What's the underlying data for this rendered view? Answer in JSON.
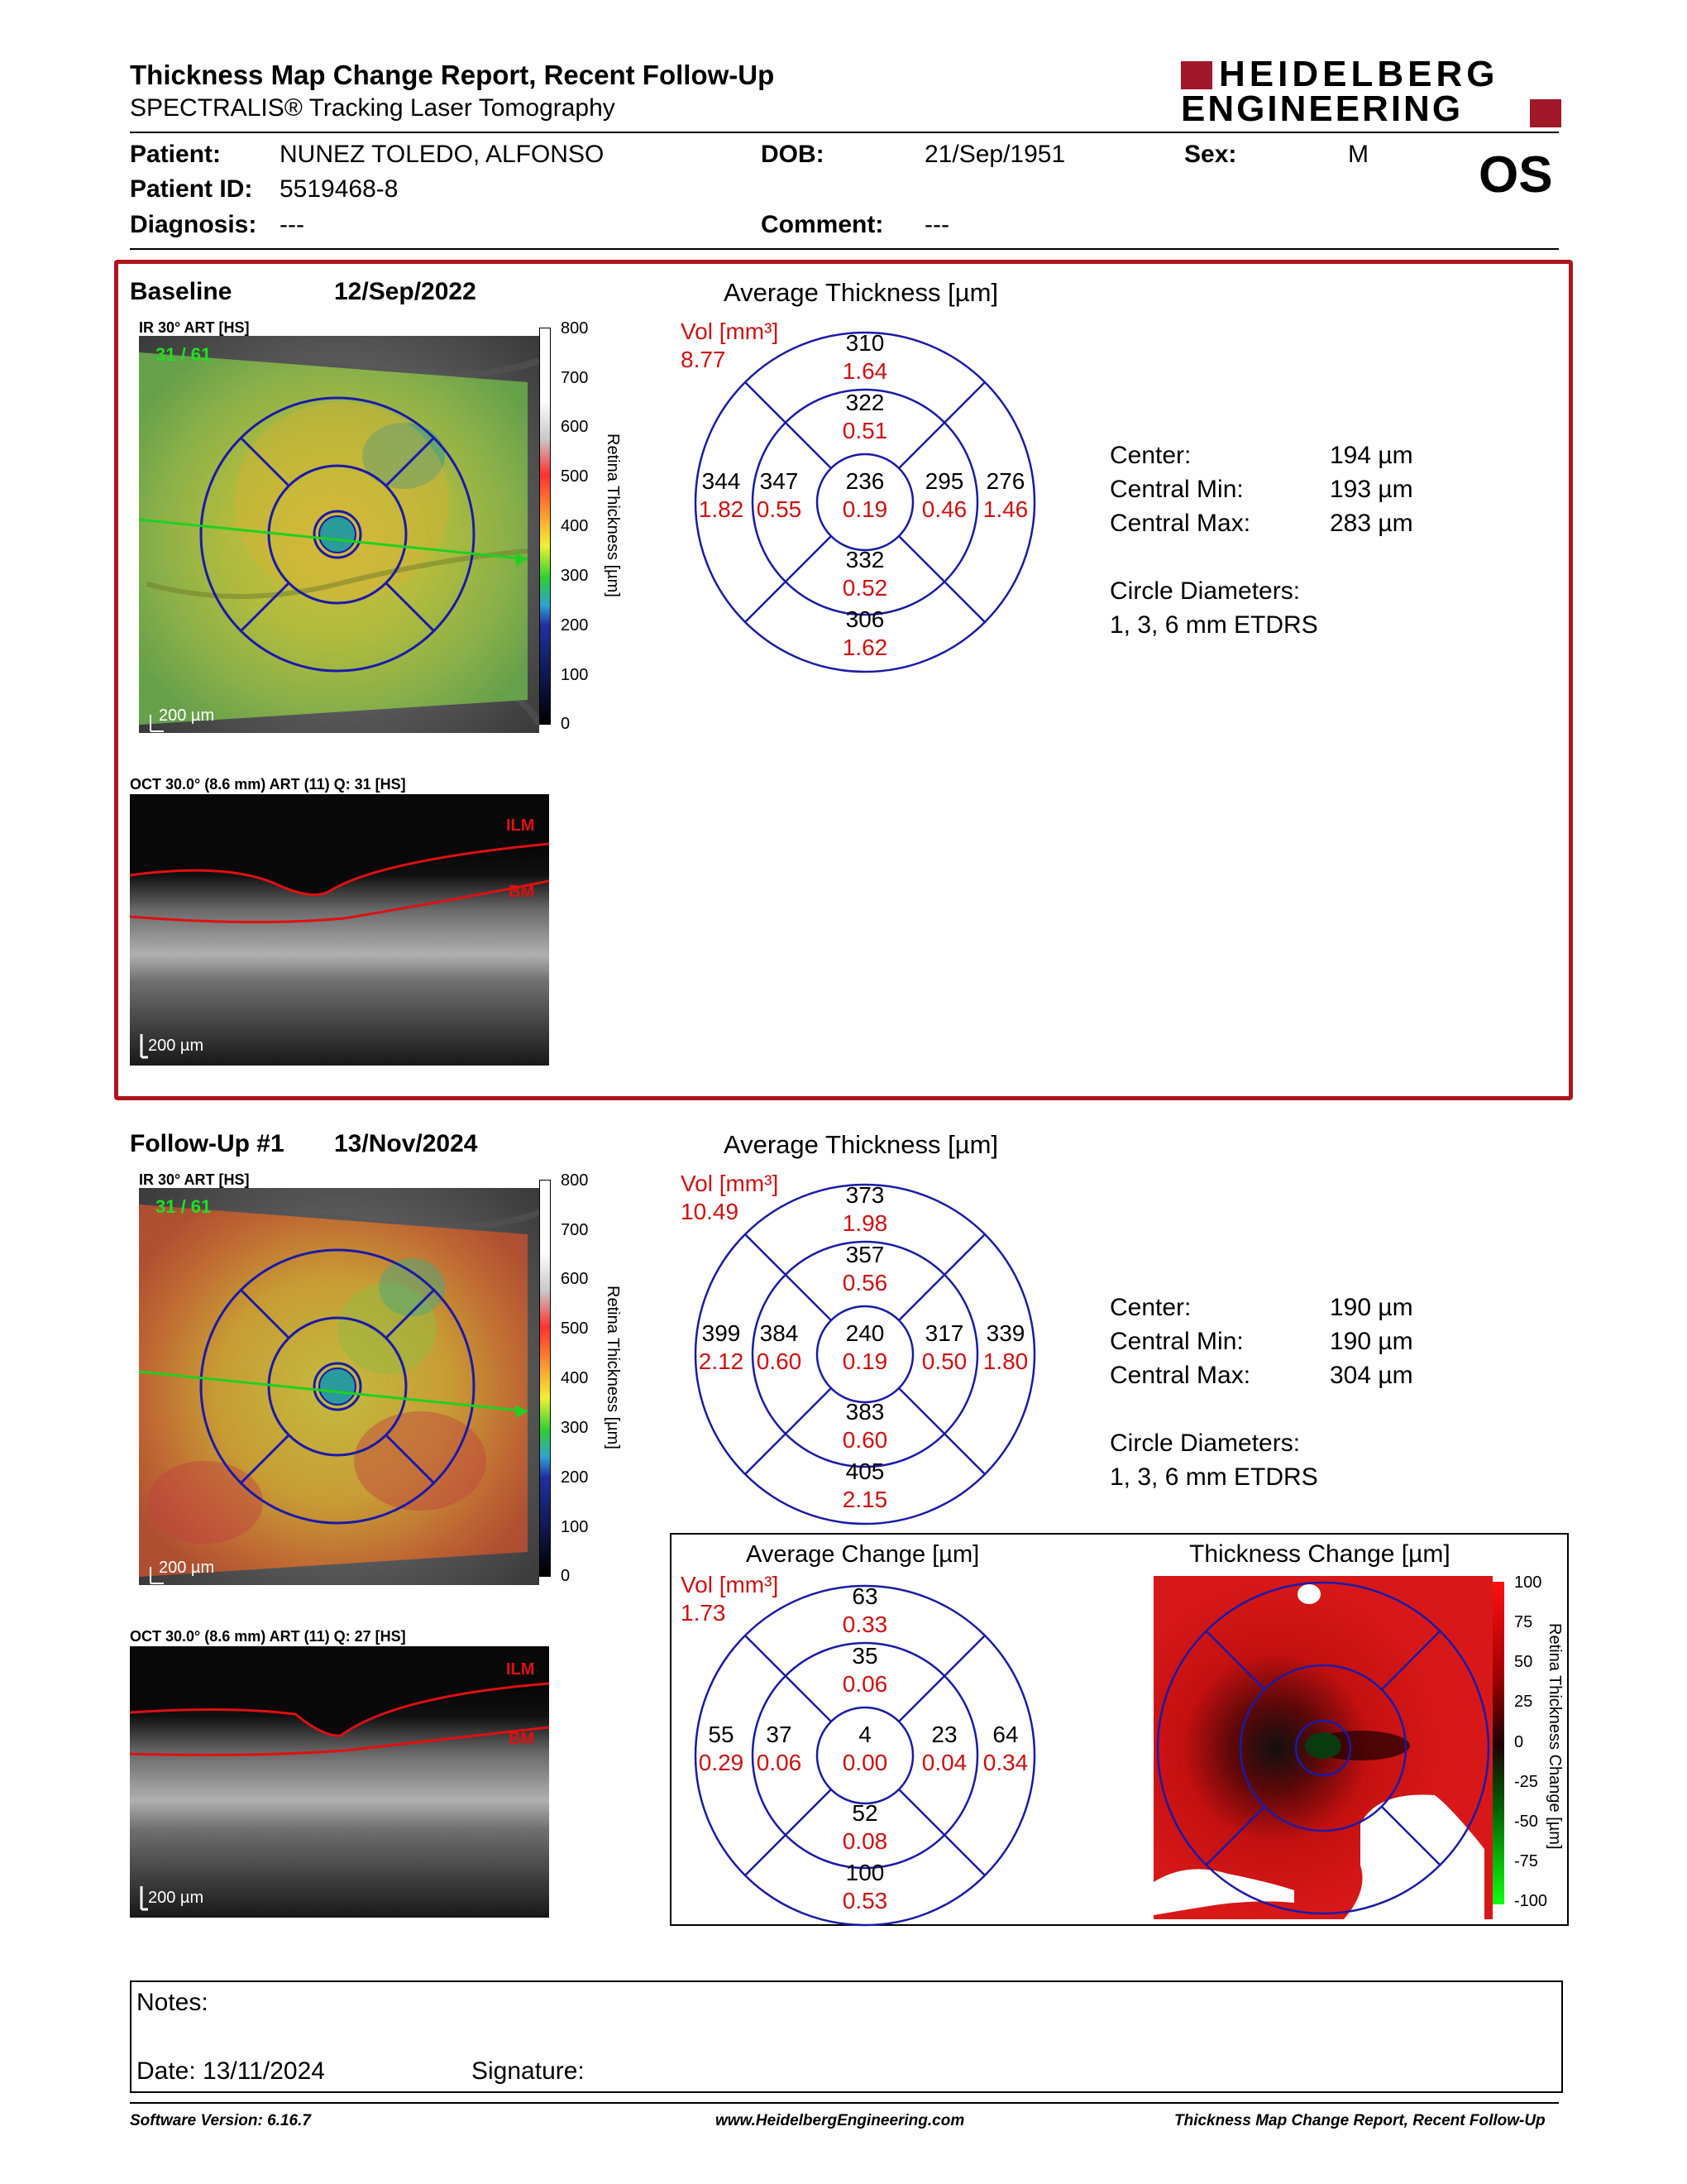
{
  "header": {
    "title": "Thickness Map Change Report, Recent Follow-Up",
    "subtitle": "SPECTRALIS® Tracking Laser Tomography",
    "logo_line1": "HEIDELBERG",
    "logo_line2": "ENGINEERING",
    "eye": "OS"
  },
  "patient": {
    "patient_label": "Patient:",
    "patient_value": "NUNEZ TOLEDO, ALFONSO",
    "dob_label": "DOB:",
    "dob_value": "21/Sep/1951",
    "sex_label": "Sex:",
    "sex_value": "M",
    "id_label": "Patient ID:",
    "id_value": "5519468-8",
    "diagnosis_label": "Diagnosis:",
    "diagnosis_value": "---",
    "comment_label": "Comment:",
    "comment_value": "---"
  },
  "baseline": {
    "label": "Baseline",
    "date": "12/Sep/2022",
    "ir_label": "IR 30° ART [HS]",
    "ir_counter": "31 / 61",
    "scale_bar": "200 µm",
    "oct_label": "OCT 30.0° (8.6 mm) ART (11) Q: 31 [HS]",
    "ilm": "ILM",
    "bm": "BM",
    "oct_scale": "200 µm",
    "avg_title": "Average Thickness [µm]",
    "vol_label": "Vol [mm³]",
    "vol_total": "8.77",
    "grid": {
      "outer_sup": [
        "310",
        "1.64"
      ],
      "inner_sup": [
        "322",
        "0.51"
      ],
      "outer_temp": [
        "344",
        "1.82"
      ],
      "inner_temp": [
        "347",
        "0.55"
      ],
      "center": [
        "236",
        "0.19"
      ],
      "inner_nasal": [
        "295",
        "0.46"
      ],
      "outer_nasal": [
        "276",
        "1.46"
      ],
      "inner_inf": [
        "332",
        "0.52"
      ],
      "outer_inf": [
        "306",
        "1.62"
      ]
    },
    "stats": {
      "center_label": "Center:",
      "center": "194 µm",
      "min_label": "Central Min:",
      "min": "193 µm",
      "max_label": "Central Max:",
      "max": "283 µm",
      "circle_label": "Circle Diameters:",
      "circle": "1, 3, 6 mm ETDRS"
    }
  },
  "followup": {
    "label": "Follow-Up #1",
    "date": "13/Nov/2024",
    "ir_label": "IR 30° ART [HS]",
    "ir_counter": "31 / 61",
    "scale_bar": "200 µm",
    "oct_label": "OCT 30.0° (8.6 mm) ART (11) Q: 27 [HS]",
    "ilm": "ILM",
    "bm": "BM",
    "oct_scale": "200 µm",
    "avg_title": "Average Thickness [µm]",
    "vol_label": "Vol [mm³]",
    "vol_total": "10.49",
    "grid": {
      "outer_sup": [
        "373",
        "1.98"
      ],
      "inner_sup": [
        "357",
        "0.56"
      ],
      "outer_temp": [
        "399",
        "2.12"
      ],
      "inner_temp": [
        "384",
        "0.60"
      ],
      "center": [
        "240",
        "0.19"
      ],
      "inner_nasal": [
        "317",
        "0.50"
      ],
      "outer_nasal": [
        "339",
        "1.80"
      ],
      "inner_inf": [
        "383",
        "0.60"
      ],
      "outer_inf": [
        "405",
        "2.15"
      ]
    },
    "stats": {
      "center_label": "Center:",
      "center": "190 µm",
      "min_label": "Central Min:",
      "min": "190 µm",
      "max_label": "Central Max:",
      "max": "304 µm",
      "circle_label": "Circle Diameters:",
      "circle": "1, 3, 6 mm ETDRS"
    }
  },
  "change": {
    "avg_title": "Average Change [µm]",
    "vol_label": "Vol [mm³]",
    "vol_total": "1.73",
    "grid": {
      "outer_sup": [
        "63",
        "0.33"
      ],
      "inner_sup": [
        "35",
        "0.06"
      ],
      "outer_temp": [
        "55",
        "0.29"
      ],
      "inner_temp": [
        "37",
        "0.06"
      ],
      "center": [
        "4",
        "0.00"
      ],
      "inner_nasal": [
        "23",
        "0.04"
      ],
      "outer_nasal": [
        "64",
        "0.34"
      ],
      "inner_inf": [
        "52",
        "0.08"
      ],
      "outer_inf": [
        "100",
        "0.53"
      ]
    },
    "map_title": "Thickness Change [µm]",
    "colorbar_title": "Retina Thickness Change [µm]",
    "colorbar_ticks": [
      "100",
      "75",
      "50",
      "25",
      "0",
      "-25",
      "-50",
      "-75",
      "-100"
    ]
  },
  "thickness_scale": {
    "title": "Retina Thickness [µm]",
    "ticks": [
      "800",
      "700",
      "600",
      "500",
      "400",
      "300",
      "200",
      "100",
      "0"
    ]
  },
  "notes": {
    "notes_label": "Notes:",
    "date_label": "Date: 13/11/2024",
    "signature_label": "Signature:"
  },
  "footer": {
    "software": "Software Version: 6.16.7",
    "website": "www.HeidelbergEngineering.com",
    "report": "Thickness Map Change Report, Recent Follow-Up"
  },
  "colors": {
    "frame_red": "#b0141e",
    "grid_blue": "#1a1aa8",
    "value_red": "#d01010",
    "logo_red": "#a0182a"
  }
}
